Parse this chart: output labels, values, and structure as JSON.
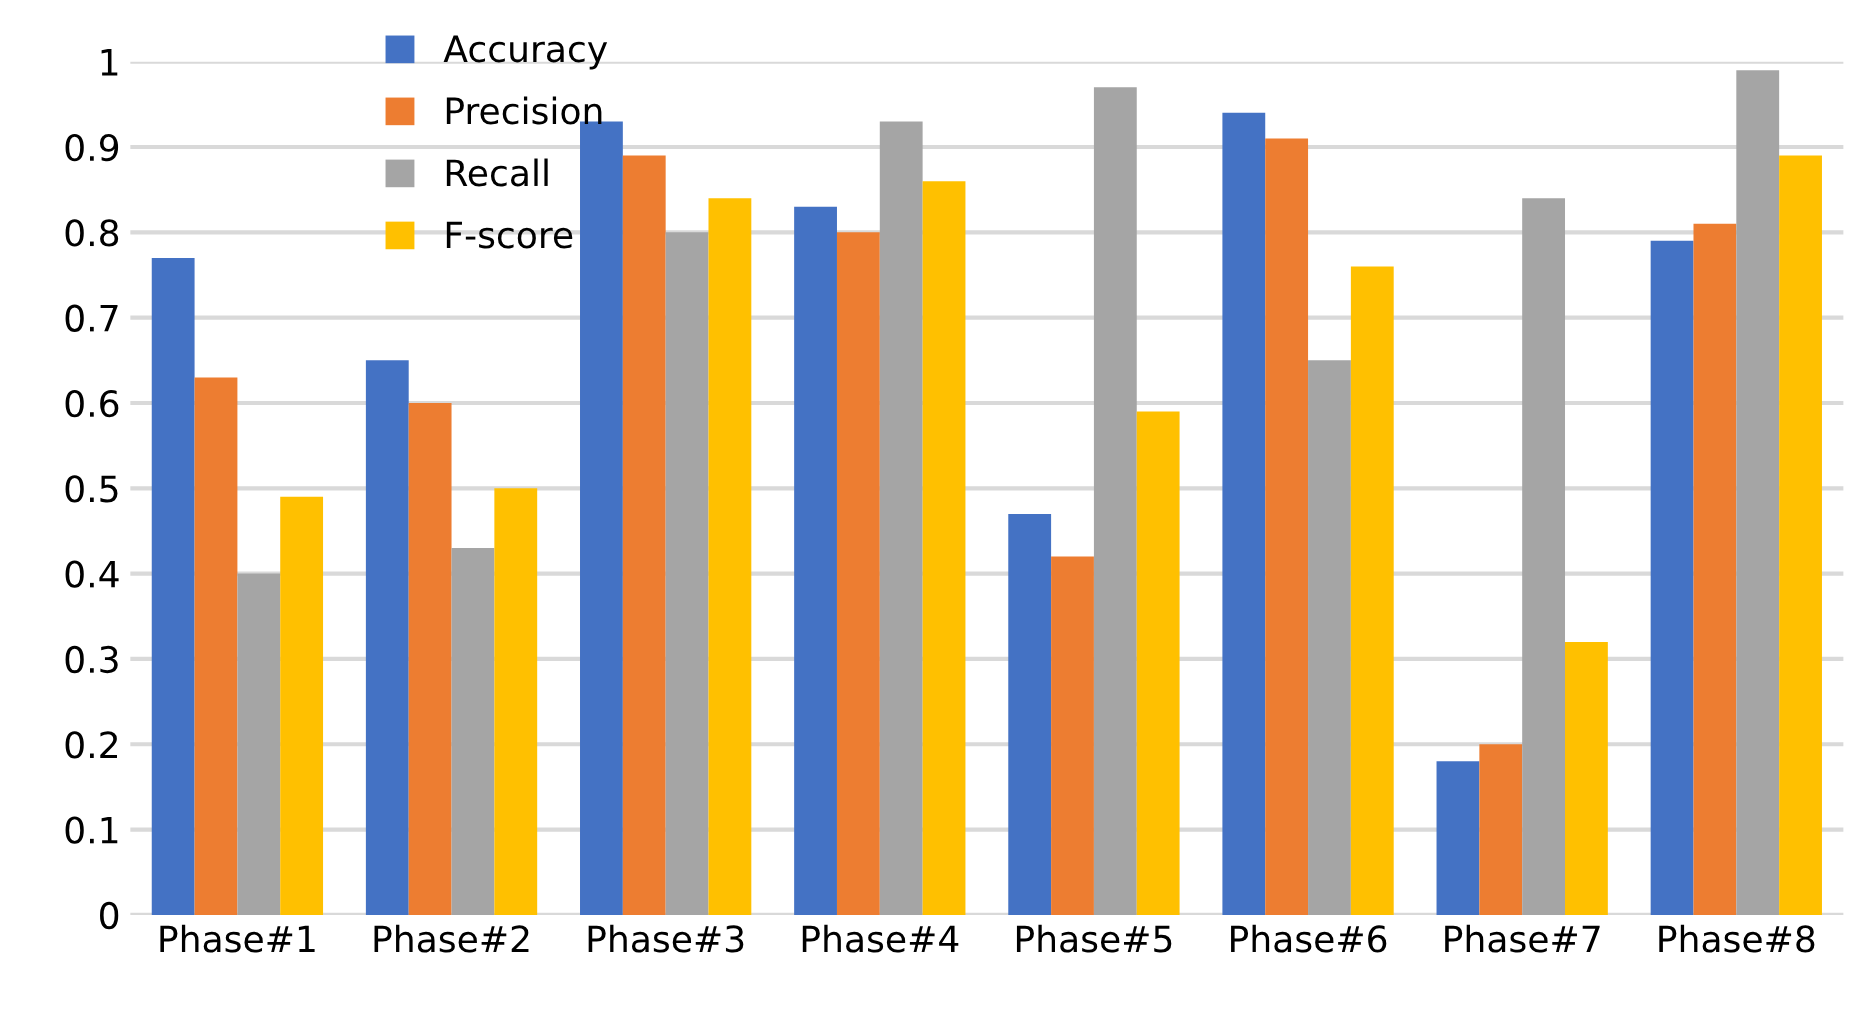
{
  "chart_data": {
    "type": "bar",
    "categories": [
      "Phase#1",
      "Phase#2",
      "Phase#3",
      "Phase#4",
      "Phase#5",
      "Phase#6",
      "Phase#7",
      "Phase#8"
    ],
    "series": [
      {
        "name": "Accuracy",
        "color": "#4472c4",
        "values": [
          0.77,
          0.65,
          0.93,
          0.83,
          0.47,
          0.94,
          0.18,
          0.79
        ]
      },
      {
        "name": "Precision",
        "color": "#ed7d31",
        "values": [
          0.63,
          0.6,
          0.89,
          0.8,
          0.42,
          0.91,
          0.2,
          0.81
        ]
      },
      {
        "name": "Recall",
        "color": "#a5a5a5",
        "values": [
          0.4,
          0.43,
          0.8,
          0.93,
          0.97,
          0.65,
          0.84,
          0.99
        ]
      },
      {
        "name": "F-score",
        "color": "#ffc000",
        "values": [
          0.49,
          0.5,
          0.84,
          0.86,
          0.59,
          0.76,
          0.32,
          0.89
        ]
      }
    ],
    "ylim": [
      0,
      1
    ],
    "yticks": [
      0,
      0.1,
      0.2,
      0.3,
      0.4,
      0.5,
      0.6,
      0.7,
      0.8,
      0.9,
      1
    ],
    "grid": "y",
    "legend": "top left"
  }
}
